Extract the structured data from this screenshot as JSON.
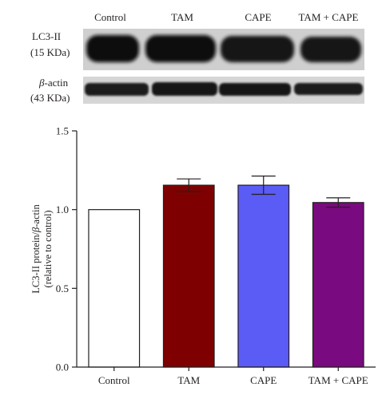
{
  "blot": {
    "lanes": [
      "Control",
      "TAM",
      "CAPE",
      "TAM + CAPE"
    ],
    "rows": [
      {
        "name_prefix": "LC3-II",
        "name_italic": "",
        "size": "(15 KDa)"
      },
      {
        "name_prefix": "",
        "name_italic": "β",
        "name_suffix": "-actin",
        "size": "(43 KDa)"
      }
    ]
  },
  "chart_data": {
    "type": "bar",
    "categories": [
      "Control",
      "TAM",
      "CAPE",
      "TAM + CAPE"
    ],
    "values": [
      1.0,
      1.155,
      1.155,
      1.045
    ],
    "errors": [
      0.0,
      0.04,
      0.058,
      0.03
    ],
    "ylabel_part1": "LC3-II protein/",
    "ylabel_italic": "β",
    "ylabel_part2": "-actin",
    "ylabel_line2": "(relative to control)",
    "ylim": [
      0,
      1.5
    ],
    "yticks": [
      "0.0",
      "0.5",
      "1.0",
      "1.5"
    ],
    "colors": [
      "#ffffff",
      "#7f0000",
      "#5b5bf6",
      "#7a0a7f"
    ],
    "grid": false
  }
}
